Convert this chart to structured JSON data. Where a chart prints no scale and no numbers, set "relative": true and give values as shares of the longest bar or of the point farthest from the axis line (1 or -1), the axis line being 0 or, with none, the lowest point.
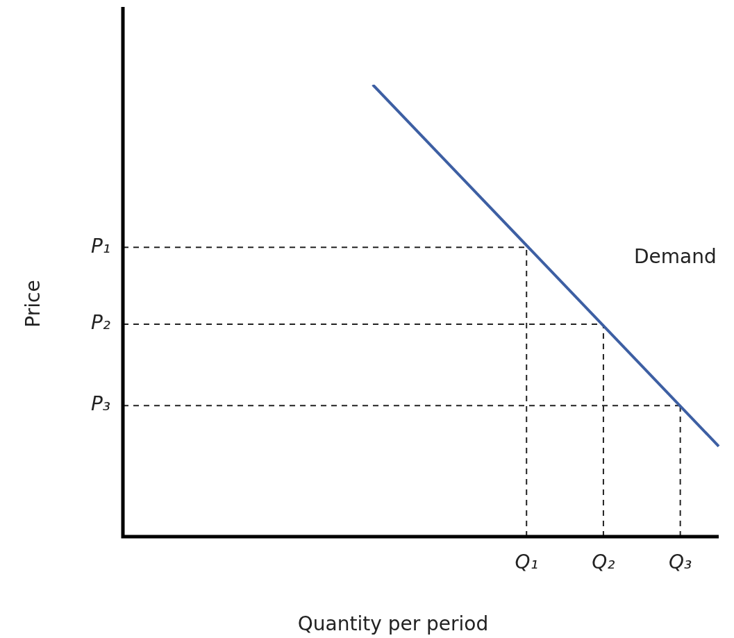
{
  "chart_data": {
    "type": "line",
    "relative": true,
    "xlabel": "Quantity per period",
    "ylabel": "Price",
    "categories": [
      null,
      null,
      null,
      null,
      null,
      null,
      null,
      null,
      null,
      null,
      null,
      null,
      null,
      null,
      null,
      null,
      null,
      null,
      null,
      null,
      null,
      "Q₁",
      null,
      null,
      null,
      "Q₂",
      null,
      null,
      null,
      "Q₃",
      null,
      null
    ],
    "series": [
      {
        "color": "#3d5fa3",
        "values": [
          null,
          null,
          null,
          null,
          null,
          null,
          null,
          null,
          null,
          null,
          null,
          null,
          null,
          1,
          null,
          null,
          null,
          null,
          null,
          null,
          null,
          null,
          null,
          null,
          null,
          null,
          null,
          null,
          null,
          null,
          null,
          0.2
        ]
      }
    ],
    "ref_lines": [
      {
        "axis": "y",
        "value": 0.64,
        "label": "P₁",
        "color": "#222222",
        "line_style": "dashed"
      },
      {
        "axis": "y",
        "value": 0.47,
        "label": "P₂",
        "color": "#222222",
        "line_style": "dashed"
      },
      {
        "axis": "y",
        "value": 0.29,
        "label": "P₃",
        "color": "#222222",
        "line_style": "dashed"
      },
      {
        "axis": "x",
        "value": "Q₁",
        "color": "#222222",
        "line_style": "dashed"
      },
      {
        "axis": "x",
        "value": "Q₂",
        "color": "#222222",
        "line_style": "dashed"
      },
      {
        "axis": "x",
        "value": "Q₃",
        "color": "#222222",
        "line_style": "dashed"
      }
    ],
    "annotations": [
      "Demand"
    ],
    "grid": false,
    "legend": false,
    "marker": "none"
  }
}
